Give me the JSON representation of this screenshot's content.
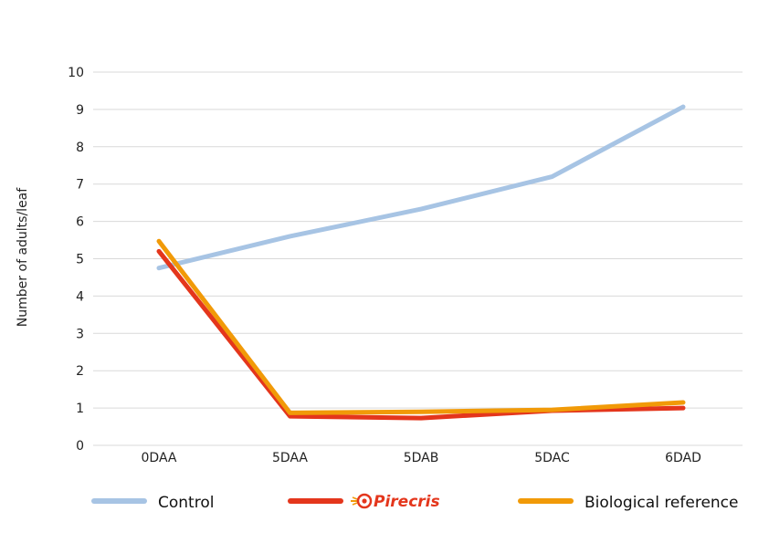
{
  "chart_data": {
    "type": "line",
    "categories": [
      "0DAA",
      "5DAA",
      "5DAB",
      "5DAC",
      "6DAD"
    ],
    "ylabel": "Number of adults/leaf",
    "xlabel": "",
    "ylim": [
      0,
      10
    ],
    "yticks": [
      0,
      1,
      2,
      3,
      4,
      5,
      6,
      7,
      8,
      9,
      10
    ],
    "grid": true,
    "legend_position": "bottom",
    "series": [
      {
        "name": "Control",
        "color": "#a7c4e4",
        "values": [
          4.75,
          5.6,
          6.33,
          7.2,
          9.07
        ]
      },
      {
        "name": "Pirecris",
        "color": "#e4361c",
        "values": [
          5.2,
          0.78,
          0.73,
          0.93,
          1.0
        ]
      },
      {
        "name": "Biological reference",
        "color": "#f19a08",
        "values": [
          5.47,
          0.87,
          0.9,
          0.95,
          1.15
        ]
      }
    ]
  },
  "legend": {
    "control_label": "Control",
    "pirecris_logo_text": "Pirecris",
    "biological_label": "Biological reference"
  }
}
